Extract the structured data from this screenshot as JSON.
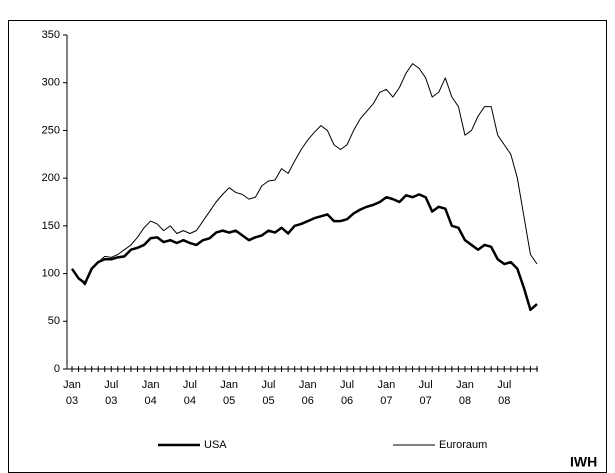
{
  "chart_data": {
    "type": "line",
    "categories": [
      "Jan 03",
      null,
      null,
      null,
      null,
      null,
      "Jul 03",
      null,
      null,
      null,
      null,
      null,
      "Jan 04",
      null,
      null,
      null,
      null,
      null,
      "Jul 04",
      null,
      null,
      null,
      null,
      null,
      "Jan 05",
      null,
      null,
      null,
      null,
      null,
      "Jul 05",
      null,
      null,
      null,
      null,
      null,
      "Jan 06",
      null,
      null,
      null,
      null,
      null,
      "Jul 06",
      null,
      null,
      null,
      null,
      null,
      "Jan 07",
      null,
      null,
      null,
      null,
      null,
      "Jul 07",
      null,
      null,
      null,
      null,
      null,
      "Jan 08",
      null,
      null,
      null,
      null,
      null,
      "Jul 08",
      null,
      null,
      null,
      null,
      null
    ],
    "series": [
      {
        "name": "USA",
        "color": "#000000",
        "width": 2.5,
        "values": [
          105,
          95,
          90,
          105,
          112,
          115,
          115,
          117,
          118,
          125,
          127,
          130,
          137,
          138,
          133,
          135,
          132,
          135,
          132,
          130,
          135,
          137,
          143,
          145,
          143,
          145,
          140,
          135,
          138,
          140,
          145,
          143,
          148,
          142,
          150,
          152,
          155,
          158,
          160,
          162,
          155,
          155,
          157,
          163,
          167,
          170,
          172,
          175,
          180,
          178,
          175,
          182,
          180,
          183,
          180,
          165,
          170,
          168,
          150,
          148,
          135,
          130,
          125,
          130,
          128,
          115,
          110,
          112,
          105,
          85,
          62,
          68
        ]
      },
      {
        "name": "Euroraum",
        "color": "#000000",
        "width": 1,
        "values": [
          105,
          95,
          88,
          105,
          112,
          118,
          117,
          120,
          125,
          130,
          138,
          148,
          155,
          152,
          145,
          150,
          142,
          145,
          142,
          145,
          155,
          165,
          175,
          183,
          190,
          185,
          183,
          178,
          180,
          192,
          197,
          198,
          210,
          205,
          218,
          230,
          240,
          248,
          255,
          250,
          235,
          230,
          235,
          250,
          262,
          270,
          278,
          290,
          293,
          285,
          295,
          310,
          320,
          315,
          305,
          285,
          290,
          305,
          285,
          275,
          245,
          250,
          265,
          275,
          275,
          245,
          235,
          225,
          200,
          160,
          120,
          110
        ]
      }
    ],
    "ylim": [
      0,
      350
    ],
    "yticks": [
      0,
      50,
      100,
      150,
      200,
      250,
      300,
      350
    ],
    "grid": false,
    "source": "IWH"
  }
}
